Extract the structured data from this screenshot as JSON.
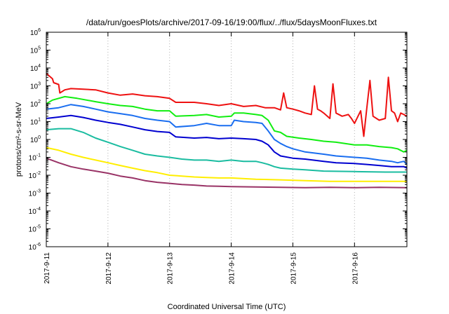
{
  "chart_data": {
    "type": "line",
    "title": "/data/run/goesPlots/archive/2017-09-16/19:00/flux/../flux/5daysMoonFluxes.txt",
    "xlabel": "Coordinated Universal Time (UTC)",
    "ylabel": "protons/cm²-s-sr-MeV",
    "yscale": "log",
    "ylim": [
      1e-06,
      1000000.0
    ],
    "xlim": [
      0,
      5.85
    ],
    "x_unit": "days since 2017-9-11 00:00 UTC",
    "y_ticks": [
      {
        "value": 1e-06,
        "base": "10",
        "exp": "-6"
      },
      {
        "value": 1e-05,
        "base": "10",
        "exp": "-5"
      },
      {
        "value": 0.0001,
        "base": "10",
        "exp": "-4"
      },
      {
        "value": 0.001,
        "base": "10",
        "exp": "-3"
      },
      {
        "value": 0.01,
        "base": "10",
        "exp": "-2"
      },
      {
        "value": 0.1,
        "base": "10",
        "exp": "-1"
      },
      {
        "value": 1,
        "base": "10",
        "exp": "0"
      },
      {
        "value": 10.0,
        "base": "10",
        "exp": "1"
      },
      {
        "value": 100.0,
        "base": "10",
        "exp": "2"
      },
      {
        "value": 1000.0,
        "base": "10",
        "exp": "3"
      },
      {
        "value": 10000.0,
        "base": "10",
        "exp": "4"
      },
      {
        "value": 100000.0,
        "base": "10",
        "exp": "5"
      },
      {
        "value": 1000000.0,
        "base": "10",
        "exp": "6"
      }
    ],
    "x_ticks": [
      {
        "value": 0,
        "label": "2017-9-11"
      },
      {
        "value": 1,
        "label": "2017-9-12"
      },
      {
        "value": 2,
        "label": "2017-9-13"
      },
      {
        "value": 3,
        "label": "2017-9-14"
      },
      {
        "value": 4,
        "label": "2017-9-15"
      },
      {
        "value": 5,
        "label": "2017-9-16"
      }
    ],
    "series": [
      {
        "color": "#ee1111",
        "x": [
          0,
          0.1,
          0.12,
          0.2,
          0.22,
          0.3,
          0.4,
          0.6,
          0.8,
          1.0,
          1.2,
          1.4,
          1.6,
          1.8,
          2.0,
          2.1,
          2.4,
          2.6,
          2.8,
          3.0,
          3.2,
          3.4,
          3.55,
          3.7,
          3.8,
          3.85,
          3.9,
          4.0,
          4.1,
          4.2,
          4.3,
          4.35,
          4.4,
          4.45,
          4.5,
          4.6,
          4.65,
          4.7,
          4.8,
          4.9,
          4.95,
          5.0,
          5.1,
          5.15,
          5.2,
          5.25,
          5.3,
          5.4,
          5.5,
          5.55,
          5.6,
          5.65,
          5.7,
          5.75,
          5.8,
          5.85
        ],
        "y": [
          5000,
          2500,
          1500,
          1200,
          400,
          600,
          700,
          650,
          600,
          400,
          300,
          350,
          280,
          250,
          200,
          120,
          120,
          100,
          80,
          100,
          70,
          80,
          60,
          60,
          45,
          400,
          60,
          50,
          40,
          30,
          25,
          1000,
          50,
          40,
          30,
          15,
          1300,
          30,
          20,
          25,
          15,
          8,
          40,
          1.5,
          60,
          2000,
          20,
          12,
          15,
          3000,
          40,
          30,
          10,
          30,
          25,
          20
        ]
      },
      {
        "color": "#11ee11",
        "x": [
          0,
          0.1,
          0.3,
          0.5,
          0.8,
          1.0,
          1.2,
          1.4,
          1.6,
          1.8,
          2.0,
          2.1,
          2.4,
          2.6,
          2.8,
          3.0,
          3.05,
          3.2,
          3.4,
          3.5,
          3.6,
          3.7,
          3.8,
          3.9,
          4.1,
          4.3,
          4.5,
          4.7,
          5.0,
          5.2,
          5.4,
          5.6,
          5.7,
          5.8,
          5.85
        ],
        "y": [
          100,
          160,
          250,
          200,
          130,
          100,
          80,
          70,
          50,
          40,
          40,
          20,
          22,
          25,
          18,
          20,
          30,
          30,
          25,
          22,
          12,
          3,
          2.5,
          1.5,
          1.2,
          1,
          0.8,
          0.7,
          0.5,
          0.5,
          0.4,
          0.35,
          0.3,
          0.2,
          0.25
        ]
      },
      {
        "color": "#1a6ef0",
        "x": [
          0,
          0.2,
          0.4,
          0.6,
          0.8,
          1.0,
          1.2,
          1.4,
          1.6,
          1.8,
          2.0,
          2.1,
          2.4,
          2.6,
          2.8,
          3.0,
          3.05,
          3.2,
          3.4,
          3.5,
          3.6,
          3.7,
          3.8,
          3.9,
          4.0,
          4.2,
          4.5,
          4.7,
          5.0,
          5.2,
          5.4,
          5.6,
          5.7,
          5.8,
          5.85
        ],
        "y": [
          50,
          60,
          90,
          70,
          50,
          35,
          28,
          22,
          15,
          12,
          10,
          5,
          6,
          8,
          6,
          6,
          12,
          10,
          9,
          8,
          3,
          1,
          0.6,
          0.4,
          0.3,
          0.2,
          0.15,
          0.12,
          0.1,
          0.09,
          0.07,
          0.06,
          0.05,
          0.06,
          0.04
        ]
      },
      {
        "color": "#0000d0",
        "x": [
          0,
          0.2,
          0.4,
          0.6,
          0.8,
          1.0,
          1.2,
          1.4,
          1.6,
          1.8,
          2.0,
          2.1,
          2.4,
          2.6,
          2.8,
          3.0,
          3.2,
          3.4,
          3.5,
          3.6,
          3.7,
          3.8,
          4.0,
          4.2,
          4.5,
          4.7,
          5.0,
          5.2,
          5.4,
          5.6,
          5.8,
          5.85
        ],
        "y": [
          15,
          18,
          22,
          17,
          12,
          9,
          7,
          5,
          3.5,
          2.8,
          2.5,
          1.4,
          1.2,
          1.3,
          1.1,
          1.2,
          1.1,
          1,
          0.8,
          0.5,
          0.2,
          0.12,
          0.09,
          0.08,
          0.06,
          0.05,
          0.045,
          0.04,
          0.035,
          0.03,
          0.03,
          0.025
        ]
      },
      {
        "color": "#1abca0",
        "x": [
          0,
          0.2,
          0.4,
          0.6,
          0.8,
          1.0,
          1.2,
          1.4,
          1.6,
          1.8,
          2.0,
          2.2,
          2.4,
          2.6,
          2.8,
          3.0,
          3.2,
          3.4,
          3.5,
          3.6,
          3.7,
          3.8,
          4.0,
          4.2,
          4.5,
          5.0,
          5.5,
          5.85
        ],
        "y": [
          3.5,
          4,
          4,
          2.5,
          1.2,
          0.7,
          0.4,
          0.25,
          0.15,
          0.12,
          0.1,
          0.08,
          0.07,
          0.07,
          0.06,
          0.07,
          0.06,
          0.06,
          0.05,
          0.04,
          0.03,
          0.025,
          0.022,
          0.02,
          0.017,
          0.016,
          0.015,
          0.015
        ]
      },
      {
        "color": "#ffee00",
        "x": [
          0,
          0.2,
          0.4,
          0.6,
          0.8,
          1.0,
          1.2,
          1.4,
          1.6,
          1.8,
          2.0,
          2.2,
          2.4,
          2.6,
          2.8,
          3.0,
          3.4,
          3.8,
          4.2,
          4.6,
          5.0,
          5.4,
          5.85
        ],
        "y": [
          0.35,
          0.25,
          0.15,
          0.1,
          0.07,
          0.05,
          0.035,
          0.025,
          0.018,
          0.014,
          0.01,
          0.009,
          0.008,
          0.0075,
          0.007,
          0.007,
          0.006,
          0.0055,
          0.005,
          0.0045,
          0.0045,
          0.0045,
          0.0045
        ]
      },
      {
        "color": "#993366",
        "x": [
          0,
          0.2,
          0.4,
          0.6,
          0.8,
          1.0,
          1.2,
          1.4,
          1.6,
          1.8,
          2.0,
          2.2,
          2.4,
          2.6,
          2.8,
          3.0,
          3.4,
          3.8,
          4.2,
          4.6,
          5.0,
          5.4,
          5.85
        ],
        "y": [
          0.09,
          0.05,
          0.03,
          0.022,
          0.017,
          0.013,
          0.009,
          0.007,
          0.005,
          0.004,
          0.0035,
          0.003,
          0.0028,
          0.0025,
          0.0024,
          0.0023,
          0.0022,
          0.0021,
          0.002,
          0.0021,
          0.002,
          0.0021,
          0.002
        ]
      }
    ]
  }
}
